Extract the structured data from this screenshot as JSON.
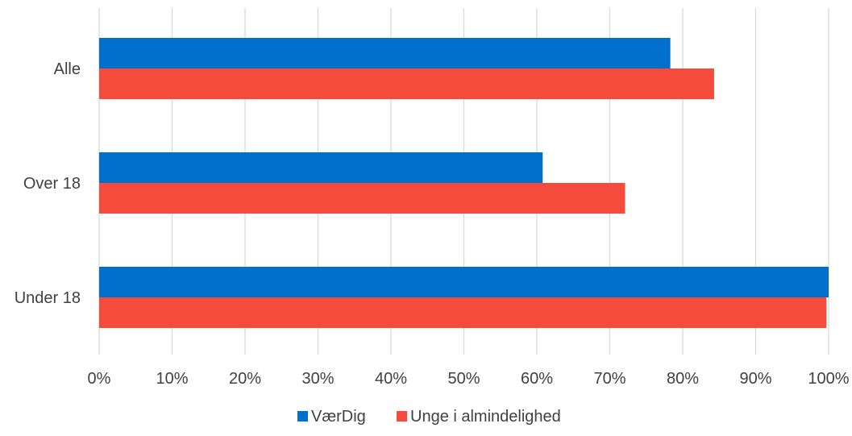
{
  "chart_data": {
    "type": "bar",
    "orientation": "horizontal",
    "categories": [
      "Alle",
      "Over 18",
      "Under 18"
    ],
    "series": [
      {
        "name": "VærDig",
        "color": "#0070CC",
        "values": [
          78.3,
          60.8,
          100.0
        ]
      },
      {
        "name": "Unge i almindelighed",
        "color": "#F44B3C",
        "values": [
          84.3,
          72.1,
          99.7
        ]
      }
    ],
    "xlim": [
      0,
      100
    ],
    "x_ticks": [
      0,
      10,
      20,
      30,
      40,
      50,
      60,
      70,
      80,
      90,
      100
    ],
    "tick_labels": [
      "0%",
      "10%",
      "20%",
      "30%",
      "40%",
      "50%",
      "60%",
      "70%",
      "80%",
      "90%",
      "100%"
    ],
    "grid": true,
    "grid_color": "#D9D9D9",
    "legend_position": "bottom",
    "title": "",
    "xlabel": "",
    "ylabel": ""
  }
}
